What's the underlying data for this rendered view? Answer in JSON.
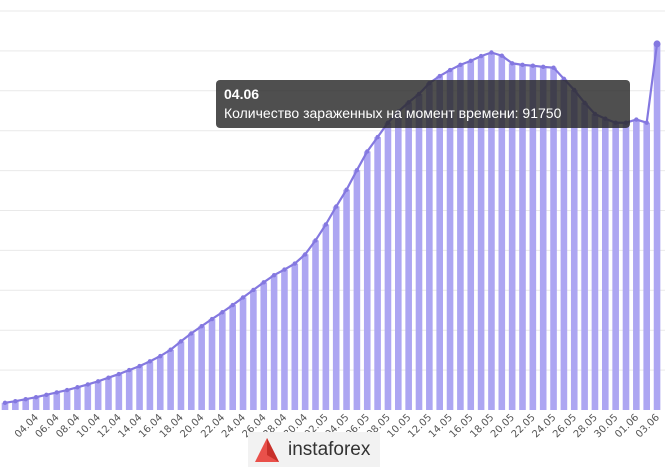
{
  "chart_data": {
    "type": "bar",
    "overlay_line": true,
    "grid": true,
    "ylim": [
      0,
      100000
    ],
    "categories": [
      "02.04",
      "03.04",
      "04.04",
      "05.04",
      "06.04",
      "07.04",
      "08.04",
      "09.04",
      "10.04",
      "11.04",
      "12.04",
      "13.04",
      "14.04",
      "15.04",
      "16.04",
      "17.04",
      "18.04",
      "19.04",
      "20.04",
      "21.04",
      "22.04",
      "23.04",
      "24.04",
      "25.04",
      "26.04",
      "27.04",
      "28.04",
      "29.04",
      "30.04",
      "01.05",
      "02.05",
      "03.05",
      "04.05",
      "05.05",
      "06.05",
      "07.05",
      "08.05",
      "09.05",
      "10.05",
      "11.05",
      "12.05",
      "13.05",
      "14.05",
      "15.05",
      "16.05",
      "17.05",
      "18.05",
      "19.05",
      "20.05",
      "21.05",
      "22.05",
      "23.05",
      "24.05",
      "25.05",
      "26.05",
      "27.05",
      "28.05",
      "29.05",
      "30.05",
      "31.05",
      "01.06",
      "02.06",
      "03.06",
      "04.06"
    ],
    "x_tick_labels": [
      "04.04",
      "06.04",
      "08.04",
      "10.04",
      "12.04",
      "14.04",
      "16.04",
      "18.04",
      "20.04",
      "22.04",
      "24.04",
      "26.04",
      "28.04",
      "30.04",
      "02.05",
      "04.05",
      "06.05",
      "08.05",
      "10.05",
      "12.05",
      "14.05",
      "16.05",
      "18.05",
      "20.05",
      "22.05",
      "24.05",
      "26.05",
      "28.05",
      "30.05",
      "01.06",
      "03.06"
    ],
    "series": [
      {
        "values": [
          1800,
          2200,
          2700,
          3200,
          3800,
          4400,
          5000,
          5700,
          6400,
          7200,
          8100,
          9000,
          10000,
          11000,
          12200,
          13500,
          15100,
          17200,
          19200,
          21000,
          22800,
          24500,
          26300,
          28200,
          30100,
          32000,
          33800,
          35200,
          36700,
          39000,
          42500,
          46500,
          51000,
          55200,
          60100,
          64800,
          68400,
          72000,
          74800,
          77100,
          79200,
          81900,
          83700,
          85200,
          86500,
          87500,
          88700,
          89600,
          88800,
          86900,
          86500,
          86300,
          86000,
          85800,
          83000,
          80200,
          77000,
          74200,
          73000,
          72000,
          72000,
          72800,
          72000,
          91750
        ]
      }
    ],
    "tooltip": {
      "date": "04.06",
      "text": "Количество зараженных на момент времени: 91750"
    },
    "colors": {
      "bar": "#ada6f2",
      "line": "#8478e0",
      "grid": "#e9e9e9",
      "tooltip_bg": "#333333"
    }
  },
  "logo": {
    "text": "instaforex",
    "colors": [
      "#e9504a",
      "#c7302a"
    ]
  }
}
